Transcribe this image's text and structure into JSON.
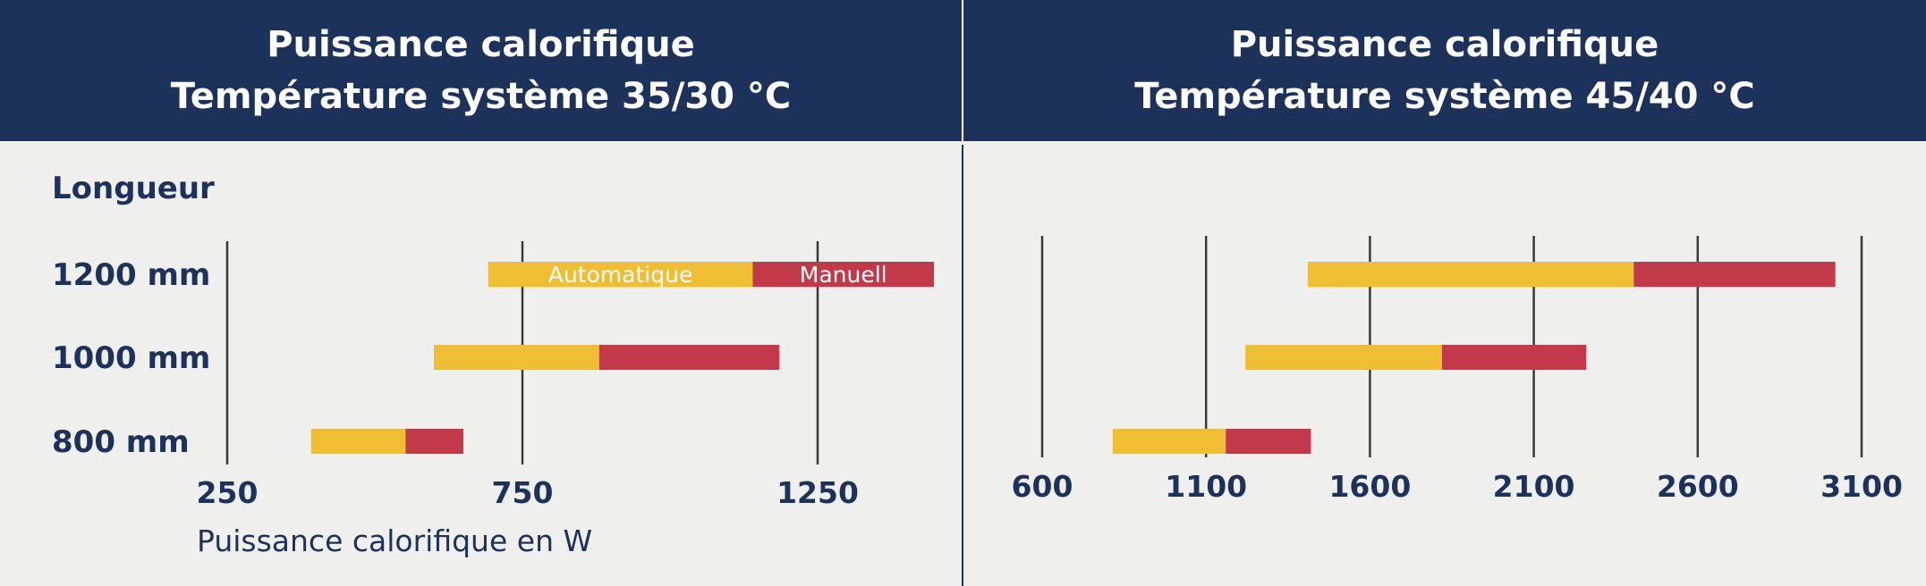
{
  "panels": [
    {
      "title_line1": "Puissance calorifique",
      "title_line2": "Température système 35/30 °C"
    },
    {
      "title_line1": "Puissance calorifique",
      "title_line2": "Température système 45/40 °C"
    }
  ],
  "colors": {
    "header_bg": "#1c325a",
    "text": "#1c325a",
    "automatic": "#efbe33",
    "manual": "#c2394a",
    "grid": "#3a3a3a",
    "background": "#efefed"
  },
  "chart_data": [
    {
      "type": "bar",
      "orientation": "horizontal-range",
      "row_header": "Longueur",
      "categories": [
        "1200 mm",
        "1000 mm",
        "800 mm"
      ],
      "xlabel": "Puissance calorifique en W",
      "xticks": [
        "250",
        "750",
        "1250"
      ],
      "xlim": [
        250,
        1450
      ],
      "series": [
        {
          "name": "Automatique",
          "ranges": [
            [
              692,
              1140
            ],
            [
              600,
              880
            ],
            [
              392,
              552
            ]
          ]
        },
        {
          "name": "Manuell",
          "ranges": [
            [
              1140,
              1447
            ],
            [
              880,
              1185
            ],
            [
              552,
              650
            ]
          ]
        }
      ],
      "legend": "inside first bar"
    },
    {
      "type": "bar",
      "orientation": "horizontal-range",
      "categories": [
        "1200 mm",
        "1000 mm",
        "800 mm"
      ],
      "xticks": [
        "600",
        "1100",
        "1600",
        "2100",
        "2600",
        "3100"
      ],
      "xlim": [
        600,
        3100
      ],
      "series": [
        {
          "ranges": [
            [
              1410,
              2405
            ],
            [
              1220,
              1820
            ],
            [
              815,
              1160
            ]
          ]
        },
        {
          "ranges": [
            [
              2405,
              3020
            ],
            [
              1820,
              2260
            ],
            [
              1160,
              1420
            ]
          ]
        }
      ]
    }
  ]
}
